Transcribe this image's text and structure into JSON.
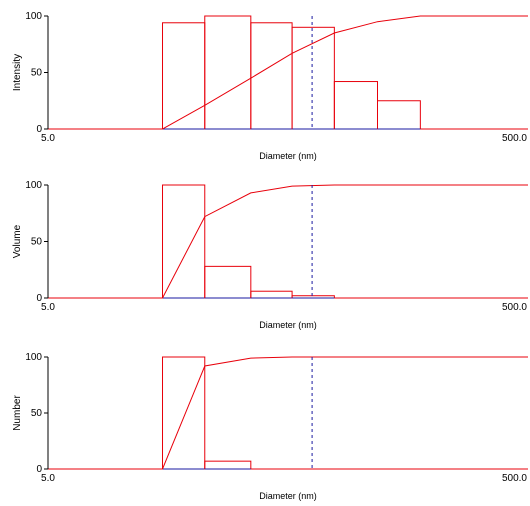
{
  "colors": {
    "series": "#e8000b",
    "axis": "#000000",
    "marker": "#1a1aa0",
    "baseline": "#1a1aa0"
  },
  "chart_data": [
    {
      "type": "bar",
      "ylabel": "Intensity",
      "xlabel": "Diameter (nm)",
      "x_scale": "log",
      "xlim": [
        5.0,
        500.0
      ],
      "x_tick_labels": [
        "5.0",
        "500.0"
      ],
      "y_ticks": [
        0,
        50,
        100
      ],
      "ylim": [
        0,
        100
      ],
      "bin_edges": [
        5.0,
        10.0,
        15.0,
        22.5,
        35.0,
        52.0,
        78.0,
        118.0,
        178.0,
        267.0,
        500.0
      ],
      "histogram": [
        0,
        0,
        94,
        100,
        94,
        90,
        42,
        25,
        0,
        0
      ],
      "cumulative": [
        0,
        0,
        0,
        21,
        45,
        67,
        85,
        95,
        100,
        100,
        100
      ],
      "marker_x": 63.0
    },
    {
      "type": "bar",
      "ylabel": "Volume",
      "xlabel": "Diameter (nm)",
      "x_scale": "log",
      "xlim": [
        5.0,
        500.0
      ],
      "x_tick_labels": [
        "5.0",
        "500.0"
      ],
      "y_ticks": [
        0,
        50,
        100
      ],
      "ylim": [
        0,
        100
      ],
      "bin_edges": [
        5.0,
        10.0,
        15.0,
        22.5,
        35.0,
        52.0,
        78.0,
        118.0,
        178.0,
        267.0,
        500.0
      ],
      "histogram": [
        0,
        0,
        100,
        28,
        6,
        2,
        0,
        0,
        0,
        0
      ],
      "cumulative": [
        0,
        0,
        0,
        72,
        93,
        99,
        100,
        100,
        100,
        100,
        100
      ],
      "marker_x": 63.0
    },
    {
      "type": "bar",
      "ylabel": "Number",
      "xlabel": "Diameter (nm)",
      "x_scale": "log",
      "xlim": [
        5.0,
        500.0
      ],
      "x_tick_labels": [
        "5.0",
        "500.0"
      ],
      "y_ticks": [
        0,
        50,
        100
      ],
      "ylim": [
        0,
        100
      ],
      "bin_edges": [
        5.0,
        10.0,
        15.0,
        22.5,
        35.0,
        52.0,
        78.0,
        118.0,
        178.0,
        267.0,
        500.0
      ],
      "histogram": [
        0,
        0,
        100,
        7,
        0,
        0,
        0,
        0,
        0,
        0
      ],
      "cumulative": [
        0,
        0,
        0,
        92,
        99,
        100,
        100,
        100,
        100,
        100,
        100
      ],
      "marker_x": 63.0
    }
  ]
}
